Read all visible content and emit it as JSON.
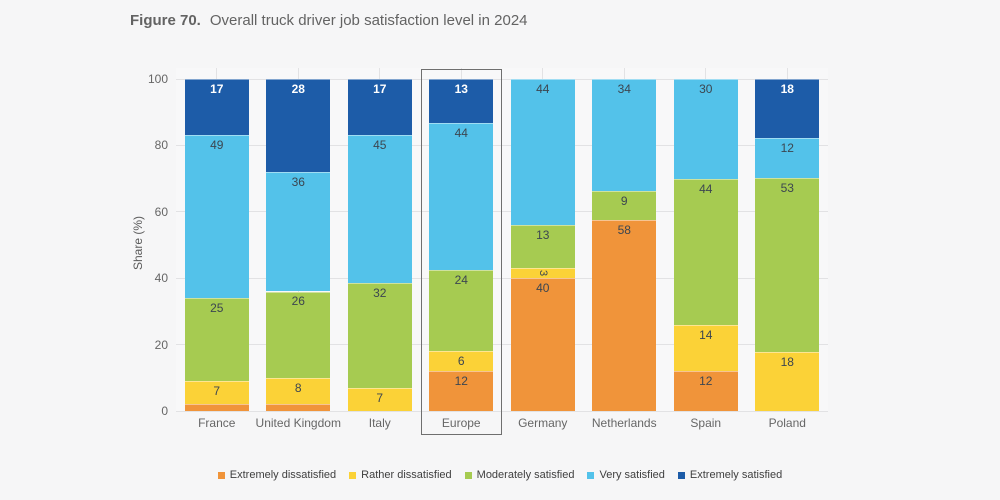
{
  "figure": {
    "title_prefix": "Figure 70.",
    "title_text": "Overall truck driver job satisfaction level in 2024"
  },
  "chart_data": {
    "type": "bar",
    "stacked": true,
    "normalized_to_100": true,
    "title": "Figure 70. Overall truck driver job satisfaction level in 2024",
    "ylabel": "Share (%)",
    "xlabel": "",
    "yticks": [
      0,
      20,
      40,
      60,
      80,
      100
    ],
    "ylim": [
      0,
      100
    ],
    "grid": true,
    "legend_position": "bottom",
    "highlighted_category": "Europe",
    "categories": [
      "France",
      "United Kingdom",
      "Italy",
      "Europe",
      "Germany",
      "Netherlands",
      "Spain",
      "Poland"
    ],
    "series": [
      {
        "name": "Extremely dissatisfied",
        "color": "#F0943A",
        "values": [
          2,
          2,
          0,
          12,
          40,
          58,
          12,
          0
        ]
      },
      {
        "name": "Rather dissatisfied",
        "color": "#FBD237",
        "values": [
          7,
          8,
          7,
          6,
          3,
          0,
          14,
          18
        ]
      },
      {
        "name": "Moderately satisfied",
        "color": "#A6CB51",
        "values": [
          25,
          26,
          32,
          24,
          13,
          9,
          44,
          53
        ]
      },
      {
        "name": "Very satisfied",
        "color": "#53C2EA",
        "values": [
          49,
          36,
          45,
          44,
          44,
          34,
          30,
          12
        ]
      },
      {
        "name": "Extremely satisfied",
        "color": "#1D5CA8",
        "values": [
          17,
          28,
          17,
          13,
          0,
          0,
          0,
          18
        ]
      }
    ],
    "value_label_colors": {
      "on_dark": "#FFFFFF",
      "on_light": "#3C4650"
    }
  }
}
